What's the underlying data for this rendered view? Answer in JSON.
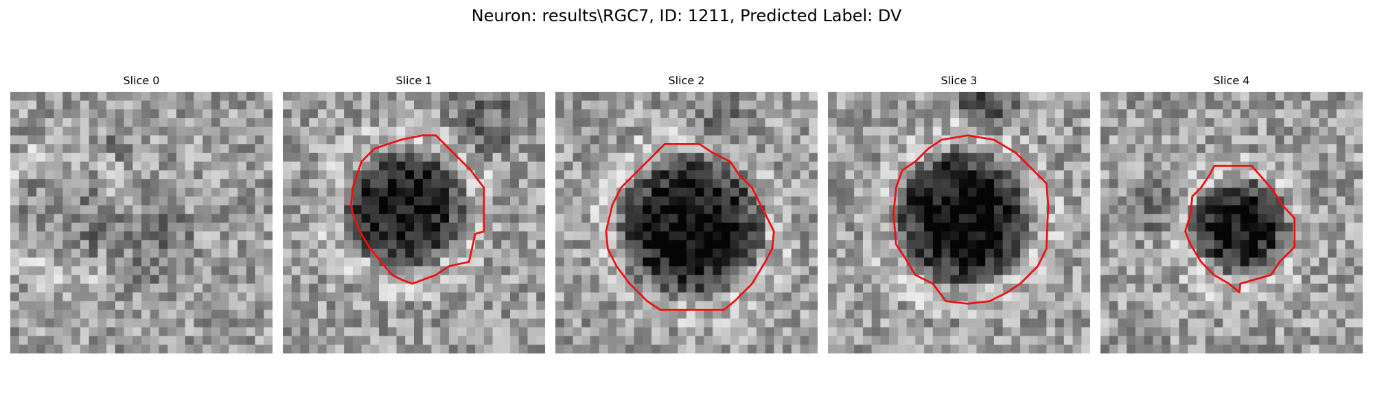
{
  "figure": {
    "title": "Neuron: results\\RGC7, ID: 1211, Predicted Label: DV"
  },
  "panels": [
    {
      "title": "Slice 0",
      "contour": false,
      "seed": 11,
      "blob_dark": 0.15
    },
    {
      "title": "Slice 1",
      "contour": true,
      "seed": 23,
      "blob_dark": 0.45
    },
    {
      "title": "Slice 2",
      "contour": true,
      "seed": 37,
      "blob_dark": 0.55
    },
    {
      "title": "Slice 3",
      "contour": true,
      "seed": 51,
      "blob_dark": 0.55
    },
    {
      "title": "Slice 4",
      "contour": true,
      "seed": 67,
      "blob_dark": 0.45
    }
  ],
  "colors": {
    "contour": "#ee1111",
    "background": "#ffffff"
  }
}
